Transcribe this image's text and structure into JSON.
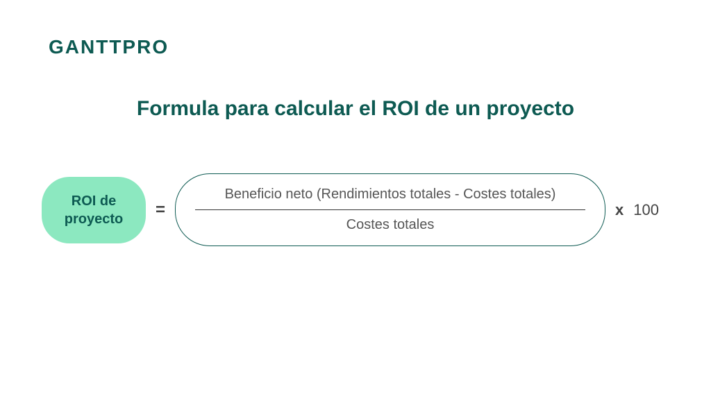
{
  "logo": {
    "text": "GANTTPRO",
    "color": "#0d5a52"
  },
  "title": {
    "text": "Formula para calcular el ROI de un proyecto",
    "color": "#0d5a52",
    "fontsize": 30
  },
  "formula": {
    "result_pill": {
      "line1": "ROI de",
      "line2": "proyecto",
      "background_color": "#8ce8c0",
      "text_color": "#0d5a52"
    },
    "equals": "=",
    "fraction": {
      "numerator": "Beneficio neto (Rendimientos totales - Costes totales)",
      "denominator": "Costes totales",
      "border_color": "#0d5a52",
      "text_color": "#555555"
    },
    "multiply": "x",
    "constant": "100"
  },
  "colors": {
    "background": "#ffffff",
    "brand": "#0d5a52",
    "pill_fill": "#8ce8c0",
    "body_text": "#555555",
    "operator": "#444444"
  }
}
